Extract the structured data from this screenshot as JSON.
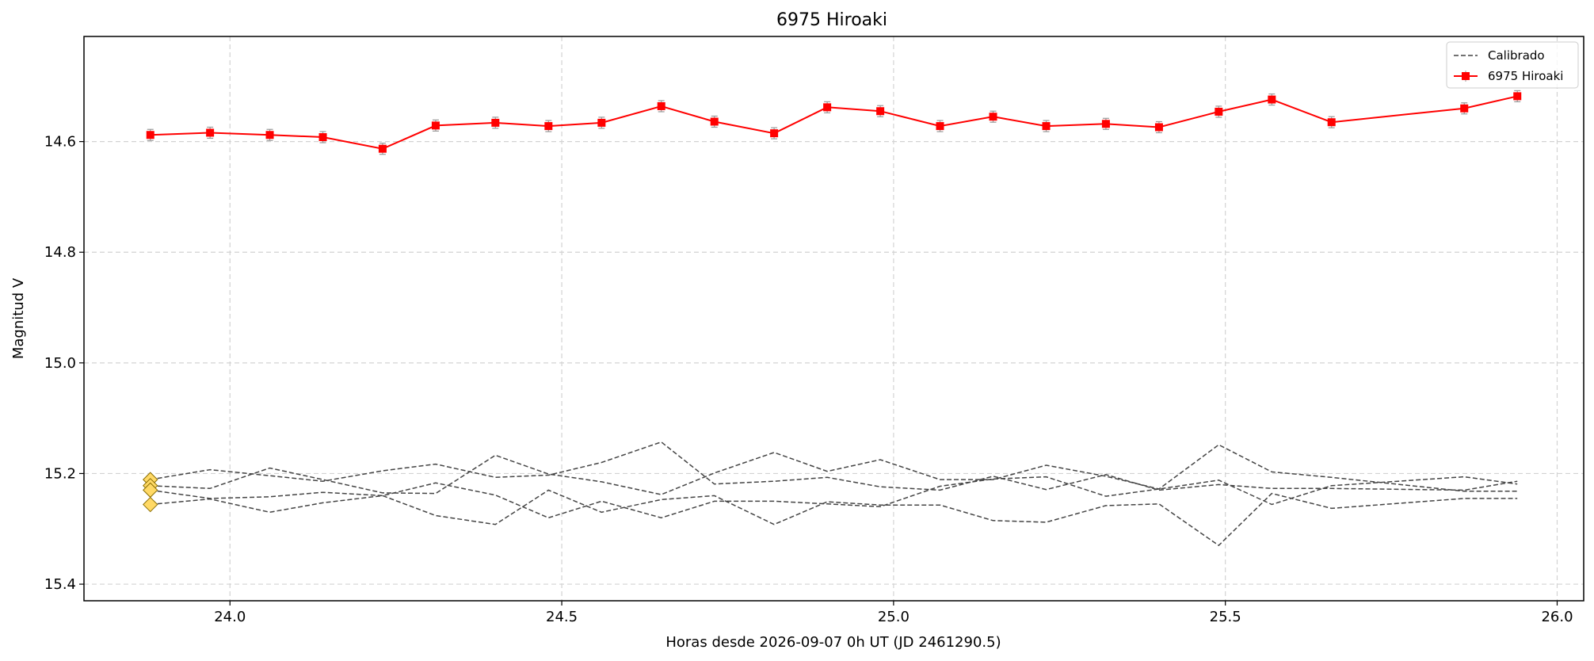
{
  "chart_data": {
    "type": "line",
    "title": "6975 Hiroaki",
    "xlabel": "Horas desde 2026-09-07 0h UT (JD 2461290.5)",
    "ylabel": "Magnitud V",
    "xlim": [
      23.78,
      26.04
    ],
    "ylim": [
      15.43,
      14.41
    ],
    "y_inverted": true,
    "xticks": [
      "24.0",
      "24.5",
      "25.0",
      "25.5",
      "26.0"
    ],
    "yticks": [
      "14.6",
      "14.8",
      "15.0",
      "15.2",
      "15.4"
    ],
    "grid": true,
    "legend": {
      "position": "top-right",
      "entries": [
        "Calibrado",
        "6975 Hiroaki"
      ]
    },
    "colors": {
      "target": "#ff0000",
      "comparison": "#444444",
      "start_marker": "#ffd966"
    },
    "x": [
      23.88,
      23.97,
      24.06,
      24.14,
      24.23,
      24.31,
      24.4,
      24.48,
      24.56,
      24.65,
      24.73,
      24.82,
      24.9,
      24.98,
      25.07,
      25.15,
      25.23,
      25.32,
      25.4,
      25.49,
      25.57,
      25.66,
      25.86,
      25.94
    ],
    "series": [
      {
        "name": "6975 Hiroaki",
        "style": "solid-square-markers-errorbars",
        "values": [
          14.588,
          14.584,
          14.588,
          14.592,
          14.613,
          14.571,
          14.566,
          14.572,
          14.566,
          14.536,
          14.564,
          14.585,
          14.538,
          14.545,
          14.572,
          14.555,
          14.572,
          14.568,
          14.574,
          14.546,
          14.524,
          14.565,
          14.54,
          14.518
        ]
      },
      {
        "style": "dashed",
        "values": [
          15.211,
          15.193,
          15.204,
          15.214,
          15.195,
          15.183,
          15.207,
          15.203,
          15.18,
          15.143,
          15.219,
          15.214,
          15.207,
          15.224,
          15.23,
          15.205,
          15.229,
          15.202,
          15.23,
          15.22,
          15.227,
          15.227,
          15.23,
          15.214
        ]
      },
      {
        "style": "dashed",
        "values": [
          15.222,
          15.227,
          15.19,
          15.211,
          15.235,
          15.236,
          15.167,
          15.201,
          15.215,
          15.238,
          15.199,
          15.162,
          15.196,
          15.175,
          15.211,
          15.211,
          15.185,
          15.205,
          15.228,
          15.148,
          15.197,
          15.207,
          15.232,
          15.232
        ]
      },
      {
        "style": "dashed",
        "values": [
          15.23,
          15.245,
          15.242,
          15.234,
          15.24,
          15.217,
          15.239,
          15.28,
          15.25,
          15.28,
          15.25,
          15.25,
          15.255,
          15.26,
          15.223,
          15.21,
          15.206,
          15.241,
          15.228,
          15.212,
          15.256,
          15.222,
          15.206,
          15.219
        ]
      },
      {
        "style": "dashed",
        "values": [
          15.256,
          15.246,
          15.27,
          15.253,
          15.24,
          15.276,
          15.292,
          15.23,
          15.27,
          15.247,
          15.24,
          15.292,
          15.251,
          15.257,
          15.257,
          15.285,
          15.288,
          15.258,
          15.255,
          15.33,
          15.236,
          15.263,
          15.245,
          15.245
        ]
      }
    ]
  }
}
